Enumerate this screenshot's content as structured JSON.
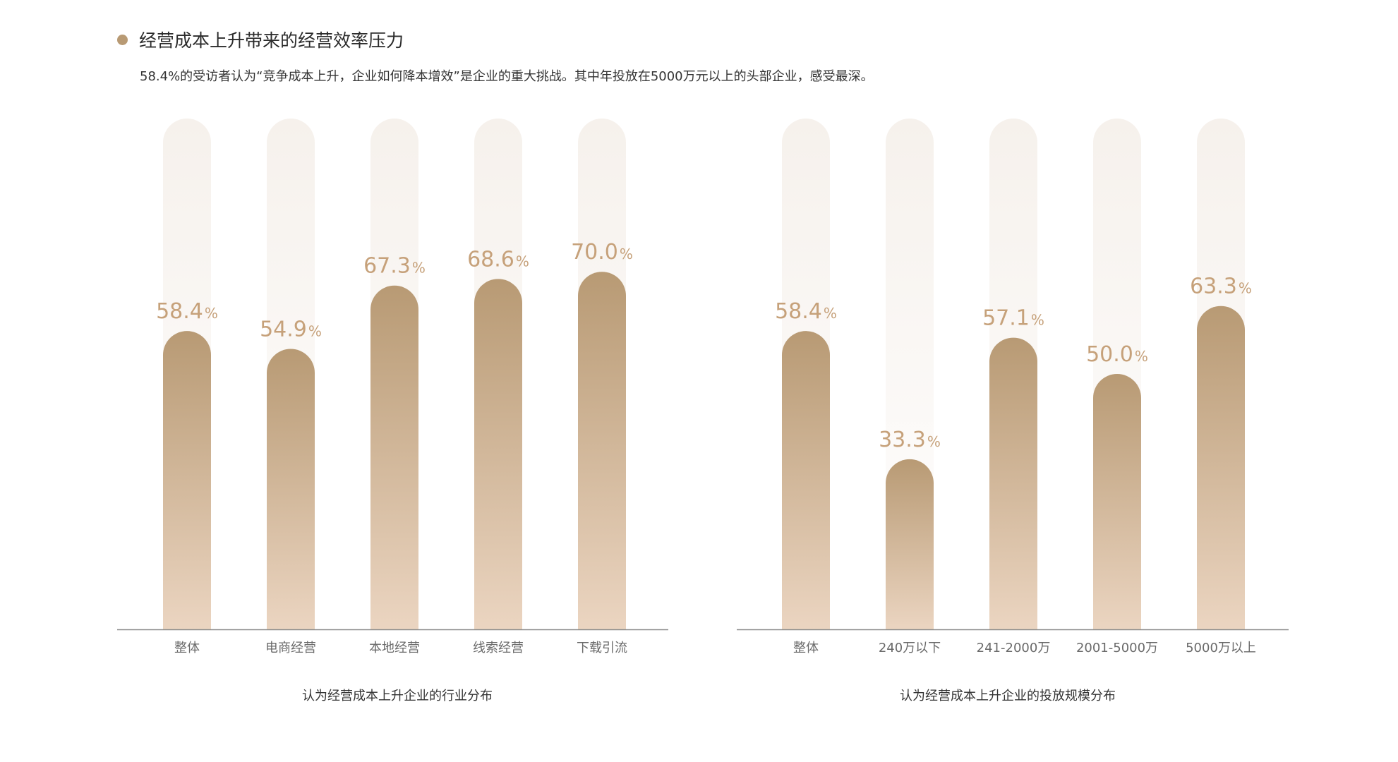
{
  "header": {
    "title": "经营成本上升带来的经营效率压力",
    "subtitle": "58.4%的受访者认为“竞争成本上升，企业如何降本增效”是企业的重大挑战。其中年投放在5000万元以上的头部企业，感受最深。"
  },
  "colors": {
    "bar_top": "#b89a74",
    "bar_bottom": "#ebd5c1",
    "track": "#f6f1ec",
    "label": "#c6a17a",
    "accent_dot": "#b89a74"
  },
  "chart_data": [
    {
      "type": "bar",
      "caption": "认为经营成本上升企业的行业分布",
      "categories": [
        "整体",
        "电商经营",
        "本地经营",
        "线索经营",
        "下载引流"
      ],
      "values": [
        58.4,
        54.9,
        67.3,
        68.6,
        70.0
      ],
      "value_labels": [
        "58.4",
        "54.9",
        "67.3",
        "68.6",
        "70.0"
      ],
      "unit": "%",
      "ylim": [
        0,
        100
      ],
      "grid": false,
      "legend": "none"
    },
    {
      "type": "bar",
      "caption": "认为经营成本上升企业的投放规模分布",
      "categories": [
        "整体",
        "240万以下",
        "241-2000万",
        "2001-5000万",
        "5000万以上"
      ],
      "values": [
        58.4,
        33.3,
        57.1,
        50.0,
        63.3
      ],
      "value_labels": [
        "58.4",
        "33.3",
        "57.1",
        "50.0",
        "63.3"
      ],
      "unit": "%",
      "ylim": [
        0,
        100
      ],
      "grid": false,
      "legend": "none"
    }
  ]
}
